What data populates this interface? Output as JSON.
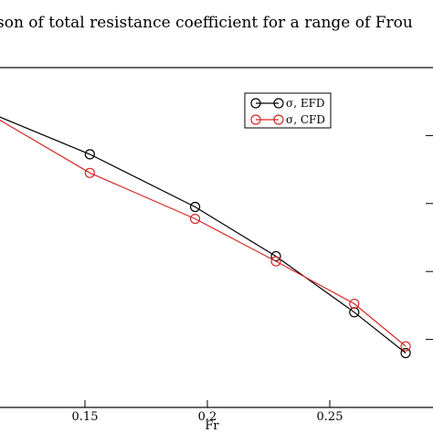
{
  "chart_data": {
    "type": "line",
    "title": "son of total resistance coefficient for a range of Frou",
    "xlabel": "Fr",
    "ylabel": "",
    "xlim": [
      0.1,
      0.3
    ],
    "ylim": [
      0,
      1
    ],
    "xticks": [
      0.15,
      0.2,
      0.25
    ],
    "xtick_labels": [
      "0.15",
      "0.2",
      "0.25"
    ],
    "yticks": [
      0.2,
      0.4,
      0.6,
      0.8
    ],
    "grid": false,
    "legend_position": "top-right",
    "series": [
      {
        "name": "σ, EFD",
        "color": "#000000",
        "marker": "open-circle",
        "x": [
          0.1,
          0.152,
          0.195,
          0.228,
          0.26,
          0.281
        ],
        "y": [
          0.9,
          0.745,
          0.59,
          0.445,
          0.28,
          0.16
        ]
      },
      {
        "name": "σ, CFD",
        "color": "#d62728",
        "marker": "open-circle",
        "x": [
          0.1,
          0.152,
          0.195,
          0.228,
          0.26,
          0.281
        ],
        "y": [
          0.91,
          0.69,
          0.555,
          0.43,
          0.305,
          0.18
        ]
      }
    ]
  }
}
